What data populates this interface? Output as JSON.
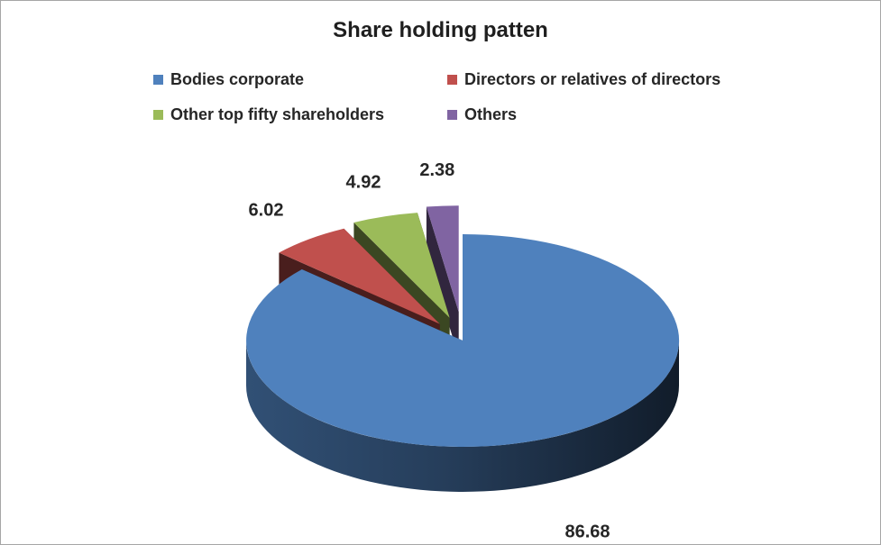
{
  "chart_data": {
    "type": "pie",
    "title": "Share holding patten",
    "categories": [
      "Bodies corporate",
      "Directors or relatives of directors",
      "Other top fifty shareholders",
      "Others"
    ],
    "values": [
      86.68,
      6.02,
      4.92,
      2.38
    ],
    "data_labels": [
      "86.68",
      "6.02",
      "4.92",
      "2.38"
    ],
    "colors": [
      "#4f81bd",
      "#c0504d",
      "#9bbb59",
      "#8064a2"
    ],
    "style": "3d-exploded",
    "legend_position": "top"
  }
}
